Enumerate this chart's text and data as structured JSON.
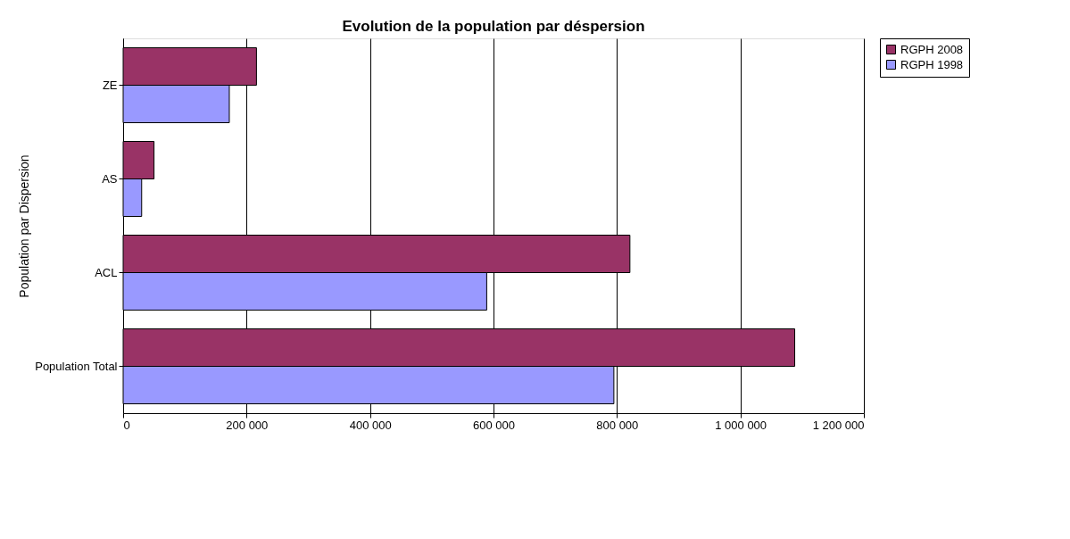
{
  "chart_data": {
    "type": "bar",
    "orientation": "horizontal",
    "title": "Evolution de la population par déspersion",
    "ylabel": "Population par Dispersion",
    "categories": [
      "ZE",
      "AS",
      "ACL",
      "Population Total"
    ],
    "series": [
      {
        "name": "RGPH 2008",
        "color": "#993366",
        "values": [
          216000,
          50000,
          821000,
          1088000
        ]
      },
      {
        "name": "RGPH 1998",
        "color": "#9999ff",
        "values": [
          172000,
          30000,
          589000,
          795000
        ]
      }
    ],
    "xlim": [
      0,
      1200000
    ],
    "xticks": [
      0,
      {
        "value": 200000,
        "label": "200 000"
      },
      {
        "value": 400000,
        "label": "400 000"
      },
      {
        "value": 600000,
        "label": "600 000"
      },
      {
        "value": 800000,
        "label": "800 000"
      },
      {
        "value": 1000000,
        "label": "1 000 000"
      },
      {
        "value": 1200000,
        "label": "1 200 000"
      }
    ],
    "grid": "x",
    "legend": "right"
  }
}
